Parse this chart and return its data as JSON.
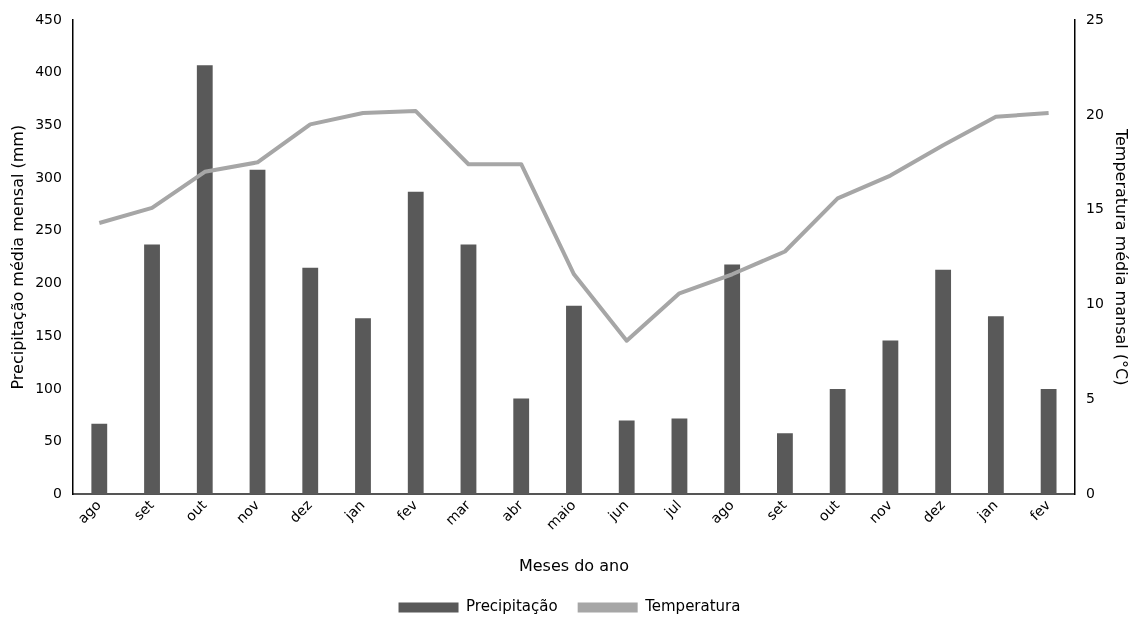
{
  "chart_data": {
    "type": "bar",
    "xlabel": "Meses do ano",
    "ylabel": "Precipitação média mensal (mm)",
    "y2label": "Temperatura média mansal (°C)",
    "categories": [
      "ago",
      "set",
      "out",
      "nov",
      "dez",
      "jan",
      "fev",
      "mar",
      "abr",
      "maio",
      "jun",
      "jul",
      "ago",
      "set",
      "out",
      "nov",
      "dez",
      "jan",
      "fev"
    ],
    "series": [
      {
        "name": "Precipitação",
        "color": "#595959",
        "values": [
          67,
          237,
          407,
          308,
          215,
          167,
          287,
          237,
          91,
          179,
          70,
          72,
          218,
          58,
          100,
          146,
          213,
          169,
          100
        ]
      },
      {
        "name": "Temperatura",
        "type": "line",
        "axis": "y2",
        "color": "#a6a6a6",
        "values": [
          14.3,
          15.1,
          17.0,
          17.5,
          19.5,
          20.1,
          20.2,
          17.4,
          17.4,
          11.6,
          8.1,
          10.6,
          11.6,
          12.8,
          15.6,
          16.8,
          18.4,
          19.9,
          20.1
        ]
      }
    ],
    "ylim": [
      0,
      450
    ],
    "yticks": [
      0,
      50,
      100,
      150,
      200,
      250,
      300,
      350,
      400,
      450
    ],
    "y2lim": [
      0,
      25
    ],
    "y2ticks": [
      0,
      5,
      10,
      15,
      20,
      25
    ],
    "legend": "bottom",
    "grid": false,
    "marker": "none",
    "line_style": "solid"
  }
}
